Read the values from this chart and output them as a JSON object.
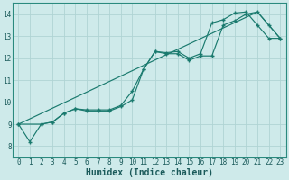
{
  "xlabel": "Humidex (Indice chaleur)",
  "xlim": [
    -0.5,
    23.5
  ],
  "ylim": [
    7.5,
    14.5
  ],
  "xticks": [
    0,
    1,
    2,
    3,
    4,
    5,
    6,
    7,
    8,
    9,
    10,
    11,
    12,
    13,
    14,
    15,
    16,
    17,
    18,
    19,
    20,
    21,
    22,
    23
  ],
  "yticks": [
    8,
    9,
    10,
    11,
    12,
    13,
    14
  ],
  "bg_color": "#ceeaea",
  "grid_color": "#b0d4d4",
  "line_color": "#1a7a6e",
  "series1_x": [
    0,
    1,
    2,
    3,
    4,
    5,
    6,
    7,
    8,
    9,
    10,
    11,
    12,
    13,
    14,
    15,
    16,
    17,
    18,
    19,
    20,
    21,
    22,
    23
  ],
  "series1_y": [
    9.0,
    8.2,
    9.0,
    9.1,
    9.5,
    9.7,
    9.6,
    9.6,
    9.6,
    9.8,
    10.1,
    11.5,
    12.3,
    12.2,
    12.2,
    11.9,
    12.1,
    12.1,
    13.5,
    13.7,
    14.0,
    14.1,
    13.5,
    12.9
  ],
  "series2_x": [
    0,
    2,
    3,
    4,
    5,
    6,
    7,
    8,
    9,
    10,
    11,
    12,
    13,
    14,
    15,
    16,
    17,
    18,
    19,
    20,
    21,
    22,
    23
  ],
  "series2_y": [
    9.0,
    9.0,
    9.1,
    9.5,
    9.7,
    9.65,
    9.65,
    9.65,
    9.85,
    10.5,
    11.5,
    12.3,
    12.25,
    12.3,
    12.0,
    12.2,
    13.6,
    13.75,
    14.05,
    14.1,
    13.5,
    12.9,
    12.9
  ],
  "series3_x": [
    0,
    21,
    23
  ],
  "series3_y": [
    9.0,
    14.1,
    12.9
  ]
}
